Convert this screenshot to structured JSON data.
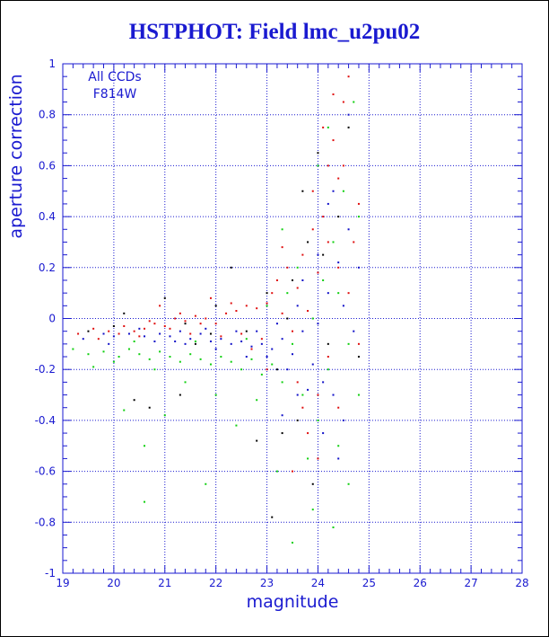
{
  "chart_data": {
    "type": "scatter",
    "title": "HSTPHOT: Field lmc_u2pu02",
    "xlabel": "magnitude",
    "ylabel": "aperture correction",
    "xlim": [
      19,
      28
    ],
    "ylim": [
      -1,
      1
    ],
    "xticks": [
      19,
      20,
      21,
      22,
      23,
      24,
      25,
      26,
      27,
      28
    ],
    "yticks": [
      -1,
      -0.8,
      -0.6,
      -0.4,
      -0.2,
      0,
      0.2,
      0.4,
      0.6,
      0.8,
      1
    ],
    "grid": true,
    "annotations": [
      "All CCDs",
      "F814W"
    ],
    "colors": {
      "axis": "#1a1ad0",
      "grid": "#1a1ad0",
      "background": "#ffffff"
    },
    "series": [
      {
        "color": "#e01010",
        "points": [
          [
            19.3,
            -0.06
          ],
          [
            19.6,
            -0.04
          ],
          [
            19.9,
            -0.05
          ],
          [
            20.2,
            -0.03
          ],
          [
            20.4,
            -0.05
          ],
          [
            20.6,
            -0.04
          ],
          [
            20.8,
            -0.02
          ],
          [
            21.0,
            -0.03
          ],
          [
            21.2,
            0.0
          ],
          [
            21.4,
            -0.01
          ],
          [
            21.6,
            0.01
          ],
          [
            21.8,
            0.0
          ],
          [
            22.0,
            -0.02
          ],
          [
            22.2,
            0.02
          ],
          [
            22.4,
            0.03
          ],
          [
            22.6,
            0.05
          ],
          [
            22.8,
            0.04
          ],
          [
            23.0,
            0.06
          ],
          [
            23.1,
            0.1
          ],
          [
            23.2,
            0.15
          ],
          [
            23.3,
            0.02
          ],
          [
            23.4,
            0.2
          ],
          [
            23.5,
            -0.05
          ],
          [
            23.6,
            0.12
          ],
          [
            23.7,
            0.25
          ],
          [
            23.8,
            0.03
          ],
          [
            23.9,
            0.35
          ],
          [
            24.0,
            0.18
          ],
          [
            24.1,
            0.4
          ],
          [
            24.2,
            0.6
          ],
          [
            24.3,
            0.7
          ],
          [
            24.4,
            0.55
          ],
          [
            24.5,
            0.85
          ],
          [
            24.6,
            0.95
          ],
          [
            24.7,
            0.3
          ],
          [
            24.2,
            -0.15
          ],
          [
            24.0,
            -0.3
          ],
          [
            23.6,
            -0.25
          ],
          [
            23.8,
            -0.45
          ],
          [
            24.4,
            -0.35
          ],
          [
            24.6,
            0.1
          ],
          [
            24.8,
            0.45
          ],
          [
            22.9,
            -0.08
          ],
          [
            22.5,
            -0.06
          ],
          [
            21.9,
            0.08
          ],
          [
            21.5,
            -0.06
          ],
          [
            20.9,
            0.05
          ],
          [
            20.5,
            -0.07
          ],
          [
            23.3,
            0.28
          ],
          [
            23.9,
            0.5
          ],
          [
            24.1,
            0.75
          ],
          [
            24.3,
            0.88
          ],
          [
            24.4,
            0.2
          ],
          [
            24.0,
            -0.55
          ],
          [
            23.5,
            -0.6
          ],
          [
            22.7,
            -0.12
          ],
          [
            22.1,
            -0.07
          ],
          [
            21.7,
            -0.02
          ],
          [
            21.3,
            0.02
          ],
          [
            20.7,
            -0.01
          ],
          [
            20.1,
            -0.06
          ],
          [
            19.7,
            -0.08
          ],
          [
            24.5,
            0.6
          ],
          [
            24.8,
            -0.1
          ],
          [
            24.2,
            0.3
          ],
          [
            23.7,
            -0.35
          ],
          [
            23.0,
            -0.2
          ],
          [
            22.3,
            0.06
          ],
          [
            21.1,
            -0.04
          ]
        ]
      },
      {
        "color": "#1010c8",
        "points": [
          [
            19.4,
            -0.08
          ],
          [
            19.8,
            -0.06
          ],
          [
            20.0,
            -0.07
          ],
          [
            20.3,
            -0.06
          ],
          [
            20.6,
            -0.07
          ],
          [
            20.9,
            -0.06
          ],
          [
            21.1,
            -0.07
          ],
          [
            21.3,
            -0.05
          ],
          [
            21.5,
            -0.08
          ],
          [
            21.7,
            -0.06
          ],
          [
            21.9,
            -0.09
          ],
          [
            22.1,
            -0.08
          ],
          [
            22.3,
            -0.1
          ],
          [
            22.5,
            -0.09
          ],
          [
            22.7,
            -0.11
          ],
          [
            22.9,
            -0.1
          ],
          [
            23.1,
            -0.12
          ],
          [
            23.3,
            -0.08
          ],
          [
            23.5,
            -0.14
          ],
          [
            23.7,
            -0.05
          ],
          [
            23.9,
            -0.18
          ],
          [
            24.0,
            -0.02
          ],
          [
            24.1,
            -0.25
          ],
          [
            24.2,
            0.1
          ],
          [
            24.3,
            -0.3
          ],
          [
            24.4,
            0.22
          ],
          [
            24.5,
            -0.4
          ],
          [
            24.6,
            0.35
          ],
          [
            24.7,
            -0.05
          ],
          [
            23.4,
            -0.2
          ],
          [
            23.6,
            -0.3
          ],
          [
            23.8,
            -0.28
          ],
          [
            24.0,
            0.25
          ],
          [
            24.3,
            0.5
          ],
          [
            24.6,
            0.8
          ],
          [
            22.6,
            -0.15
          ],
          [
            22.0,
            -0.12
          ],
          [
            21.4,
            -0.1
          ],
          [
            20.8,
            -0.09
          ],
          [
            23.2,
            -0.02
          ],
          [
            23.6,
            0.05
          ],
          [
            24.1,
            -0.45
          ],
          [
            24.4,
            -0.55
          ],
          [
            24.8,
            0.2
          ],
          [
            23.0,
            -0.15
          ],
          [
            22.4,
            -0.05
          ],
          [
            21.8,
            -0.04
          ],
          [
            21.2,
            -0.09
          ],
          [
            20.5,
            -0.04
          ],
          [
            19.9,
            -0.1
          ],
          [
            23.7,
            0.15
          ],
          [
            24.2,
            0.45
          ],
          [
            24.5,
            0.05
          ],
          [
            23.3,
            -0.38
          ],
          [
            22.8,
            -0.05
          ]
        ]
      },
      {
        "color": "#10d010",
        "points": [
          [
            19.2,
            -0.12
          ],
          [
            19.5,
            -0.14
          ],
          [
            19.8,
            -0.13
          ],
          [
            20.1,
            -0.15
          ],
          [
            20.3,
            -0.12
          ],
          [
            20.5,
            -0.14
          ],
          [
            20.7,
            -0.16
          ],
          [
            20.9,
            -0.13
          ],
          [
            21.1,
            -0.15
          ],
          [
            21.3,
            -0.17
          ],
          [
            21.5,
            -0.14
          ],
          [
            21.7,
            -0.16
          ],
          [
            21.9,
            -0.18
          ],
          [
            22.1,
            -0.15
          ],
          [
            22.3,
            -0.17
          ],
          [
            22.5,
            -0.2
          ],
          [
            22.7,
            -0.16
          ],
          [
            22.9,
            -0.22
          ],
          [
            23.1,
            -0.18
          ],
          [
            23.3,
            -0.25
          ],
          [
            23.5,
            -0.1
          ],
          [
            23.7,
            -0.3
          ],
          [
            23.9,
            0.0
          ],
          [
            24.0,
            -0.4
          ],
          [
            24.1,
            0.15
          ],
          [
            24.2,
            -0.2
          ],
          [
            24.3,
            0.3
          ],
          [
            24.4,
            -0.5
          ],
          [
            24.5,
            0.5
          ],
          [
            24.6,
            -0.1
          ],
          [
            24.7,
            0.85
          ],
          [
            24.8,
            0.4
          ],
          [
            23.4,
            0.1
          ],
          [
            23.6,
            0.2
          ],
          [
            23.8,
            -0.55
          ],
          [
            24.0,
            0.6
          ],
          [
            24.2,
            0.75
          ],
          [
            20.6,
            -0.5
          ],
          [
            20.2,
            -0.36
          ],
          [
            21.0,
            -0.38
          ],
          [
            21.8,
            -0.65
          ],
          [
            22.4,
            -0.42
          ],
          [
            23.2,
            -0.6
          ],
          [
            23.5,
            -0.88
          ],
          [
            23.9,
            -0.75
          ],
          [
            24.3,
            -0.82
          ],
          [
            22.0,
            -0.3
          ],
          [
            21.4,
            -0.25
          ],
          [
            20.8,
            -0.2
          ],
          [
            20.0,
            -0.17
          ],
          [
            19.6,
            -0.19
          ],
          [
            22.8,
            -0.32
          ],
          [
            23.0,
            0.05
          ],
          [
            24.6,
            -0.65
          ],
          [
            24.8,
            -0.3
          ],
          [
            23.3,
            0.35
          ],
          [
            24.4,
            0.1
          ],
          [
            22.6,
            -0.08
          ],
          [
            21.6,
            -0.09
          ],
          [
            20.4,
            -0.09
          ],
          [
            20.6,
            -0.72
          ]
        ]
      },
      {
        "color": "#000000",
        "points": [
          [
            19.5,
            -0.05
          ],
          [
            20.0,
            -0.03
          ],
          [
            20.4,
            -0.32
          ],
          [
            21.0,
            0.08
          ],
          [
            21.6,
            -0.1
          ],
          [
            21.9,
            -0.06
          ],
          [
            22.3,
            0.2
          ],
          [
            22.6,
            -0.05
          ],
          [
            23.0,
            0.1
          ],
          [
            23.2,
            -0.2
          ],
          [
            23.4,
            0.0
          ],
          [
            23.6,
            -0.4
          ],
          [
            23.8,
            0.3
          ],
          [
            24.0,
            0.65
          ],
          [
            24.2,
            -0.1
          ],
          [
            24.4,
            0.4
          ],
          [
            23.7,
            0.5
          ],
          [
            23.9,
            -0.65
          ],
          [
            23.1,
            -0.78
          ],
          [
            22.8,
            -0.48
          ],
          [
            21.3,
            -0.3
          ],
          [
            20.7,
            -0.35
          ],
          [
            20.2,
            0.02
          ],
          [
            24.6,
            0.75
          ],
          [
            24.8,
            -0.15
          ],
          [
            23.5,
            0.15
          ],
          [
            22.0,
            0.05
          ],
          [
            21.4,
            -0.02
          ],
          [
            23.3,
            -0.45
          ],
          [
            24.1,
            0.25
          ]
        ]
      }
    ]
  }
}
